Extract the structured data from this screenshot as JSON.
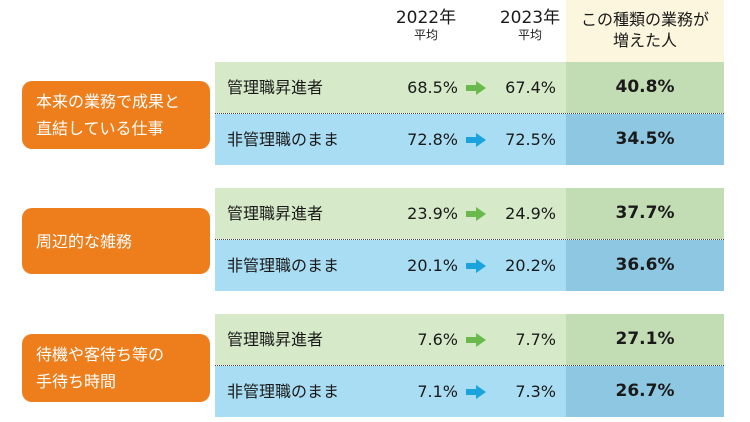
{
  "header": {
    "col2022_year": "2022年",
    "col2022_sub": "平均",
    "col2023_year": "2023年",
    "col2023_sub": "平均",
    "col_increase_line1": "この種類の業務が",
    "col_increase_line2": "増えた人"
  },
  "colors": {
    "category": "#ee7e1c",
    "manager_row": "#d6e9c8",
    "nonmanager_row": "#a9ddf3",
    "manager_arrow": "#6ab94c",
    "nonmanager_arrow": "#1aa3dd"
  },
  "chart_data": {
    "type": "table",
    "columns": [
      "2022年 平均",
      "2023年 平均",
      "この種類の業務が増えた人"
    ],
    "groups": [
      {
        "category_line1": "本来の業務で成果と",
        "category_line2": "直結している仕事",
        "rows": [
          {
            "label": "管理職昇進者",
            "v2022": "68.5%",
            "v2023": "67.4%",
            "increase": "40.8%"
          },
          {
            "label": "非管理職のまま",
            "v2022": "72.8%",
            "v2023": "72.5%",
            "increase": "34.5%"
          }
        ]
      },
      {
        "category_line1": "周辺的な雑務",
        "category_line2": "",
        "rows": [
          {
            "label": "管理職昇進者",
            "v2022": "23.9%",
            "v2023": "24.9%",
            "increase": "37.7%"
          },
          {
            "label": "非管理職のまま",
            "v2022": "20.1%",
            "v2023": "20.2%",
            "increase": "36.6%"
          }
        ]
      },
      {
        "category_line1": "待機や客待ち等の",
        "category_line2": "手待ち時間",
        "rows": [
          {
            "label": "管理職昇進者",
            "v2022": "7.6%",
            "v2023": "7.7%",
            "increase": "27.1%"
          },
          {
            "label": "非管理職のまま",
            "v2022": "7.1%",
            "v2023": "7.3%",
            "increase": "26.7%"
          }
        ]
      }
    ]
  }
}
